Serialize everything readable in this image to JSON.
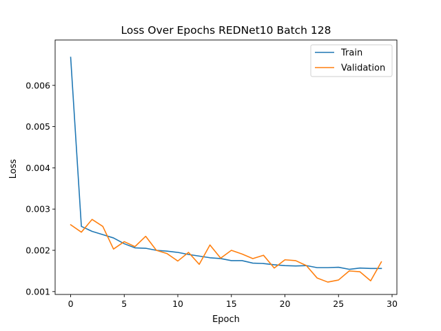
{
  "chart_data": {
    "type": "line",
    "title": "Loss Over Epochs REDNet10 Batch 128",
    "xlabel": "Epoch",
    "ylabel": "Loss",
    "xlim": [
      -1.45,
      30.45
    ],
    "ylim": [
      0.00093,
      0.0071
    ],
    "xticks": [
      0,
      5,
      10,
      15,
      20,
      25,
      30
    ],
    "yticks": [
      0.001,
      0.002,
      0.003,
      0.004,
      0.005,
      0.006
    ],
    "ytick_labels": [
      "0.001",
      "0.002",
      "0.003",
      "0.004",
      "0.005",
      "0.006"
    ],
    "grid": false,
    "legend_position": "upper right",
    "x": [
      0,
      1,
      2,
      3,
      4,
      5,
      6,
      7,
      8,
      9,
      10,
      11,
      12,
      13,
      14,
      15,
      16,
      17,
      18,
      19,
      20,
      21,
      22,
      23,
      24,
      25,
      26,
      27,
      28,
      29
    ],
    "series": [
      {
        "name": "Train",
        "color": "#1f77b4",
        "values": [
          0.00668,
          0.00258,
          0.00246,
          0.00238,
          0.0023,
          0.00216,
          0.00206,
          0.00205,
          0.002,
          0.00198,
          0.00195,
          0.0019,
          0.00186,
          0.00182,
          0.0018,
          0.00175,
          0.00175,
          0.00169,
          0.00168,
          0.00165,
          0.00163,
          0.00162,
          0.00163,
          0.00158,
          0.00158,
          0.00159,
          0.00154,
          0.00157,
          0.00156,
          0.00156
        ]
      },
      {
        "name": "Validation",
        "color": "#ff7f0e",
        "values": [
          0.00262,
          0.00244,
          0.00275,
          0.00258,
          0.00203,
          0.00221,
          0.00209,
          0.00234,
          0.002,
          0.00192,
          0.00174,
          0.00195,
          0.00166,
          0.00213,
          0.00181,
          0.002,
          0.00191,
          0.0018,
          0.00188,
          0.00157,
          0.00177,
          0.00175,
          0.00163,
          0.00133,
          0.00123,
          0.00128,
          0.0015,
          0.00148,
          0.00126,
          0.00172
        ]
      }
    ]
  }
}
